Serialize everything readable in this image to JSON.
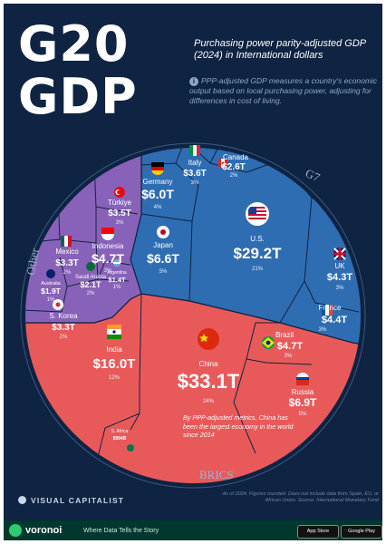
{
  "header": {
    "title_line1": "G20",
    "title_line2": "GDP",
    "subtitle": "Purchasing power parity-adjusted GDP (2024) in International dollars",
    "note": "PPP-adjusted GDP measures a country's economic output based on local purchasing power, adjusting for differences in cost of living."
  },
  "groups": {
    "g7": "G7",
    "brics": "BRICS",
    "other": "Other"
  },
  "colors": {
    "g7": "#2f6db3",
    "brics": "#e85a5a",
    "other": "#8862b8",
    "background": "#0f2342"
  },
  "china_note": "By PPP-adjusted metrics, China has been the largest economy in the world since 2014",
  "footer": {
    "brand": "VISUAL CAPITALIST",
    "footnote": "As of 2024. Figures rounded. Does not include data from Spain, EU, or African Union. Source: International Monetary Fund",
    "voronoi": "voronoi",
    "tagline": "Where Data Tells the Story",
    "app_store": "App Store",
    "google_play": "Google Play"
  },
  "chart_data": {
    "type": "voronoi-treemap",
    "title": "G20 GDP",
    "subtitle": "Purchasing power parity-adjusted GDP (2024) in International dollars",
    "unit": "International dollars",
    "series": [
      {
        "name": "G7",
        "items": [
          {
            "country": "U.S.",
            "value": "$29.2T",
            "share": "21%"
          },
          {
            "country": "Japan",
            "value": "$6.6T",
            "share": "5%"
          },
          {
            "country": "Germany",
            "value": "$6.0T",
            "share": "4%"
          },
          {
            "country": "Italy",
            "value": "$3.6T",
            "share": "3%"
          },
          {
            "country": "Canada",
            "value": "$2.6T",
            "share": "2%"
          },
          {
            "country": "UK",
            "value": "$4.3T",
            "share": "3%"
          },
          {
            "country": "France",
            "value": "$4.4T",
            "share": "3%"
          }
        ]
      },
      {
        "name": "BRICS",
        "items": [
          {
            "country": "China",
            "value": "$33.1T",
            "share": "24%"
          },
          {
            "country": "India",
            "value": "$16.0T",
            "share": "12%"
          },
          {
            "country": "Russia",
            "value": "$6.9T",
            "share": "5%"
          },
          {
            "country": "Brazil",
            "value": "$4.7T",
            "share": "3%"
          },
          {
            "country": "S. Africa",
            "value": "$994B",
            "share": ""
          }
        ]
      },
      {
        "name": "Other",
        "items": [
          {
            "country": "Indonesia",
            "value": "$4.7T",
            "share": "3%"
          },
          {
            "country": "Türkiye",
            "value": "$3.5T",
            "share": "3%"
          },
          {
            "country": "Mexico",
            "value": "$3.3T",
            "share": "2%"
          },
          {
            "country": "S. Korea",
            "value": "$3.3T",
            "share": "2%"
          },
          {
            "country": "Saudi Arabia",
            "value": "$2.1T",
            "share": "2%"
          },
          {
            "country": "Australia",
            "value": "$1.9T",
            "share": "1%"
          },
          {
            "country": "Argentina",
            "value": "$1.4T",
            "share": "1%"
          }
        ]
      }
    ]
  }
}
